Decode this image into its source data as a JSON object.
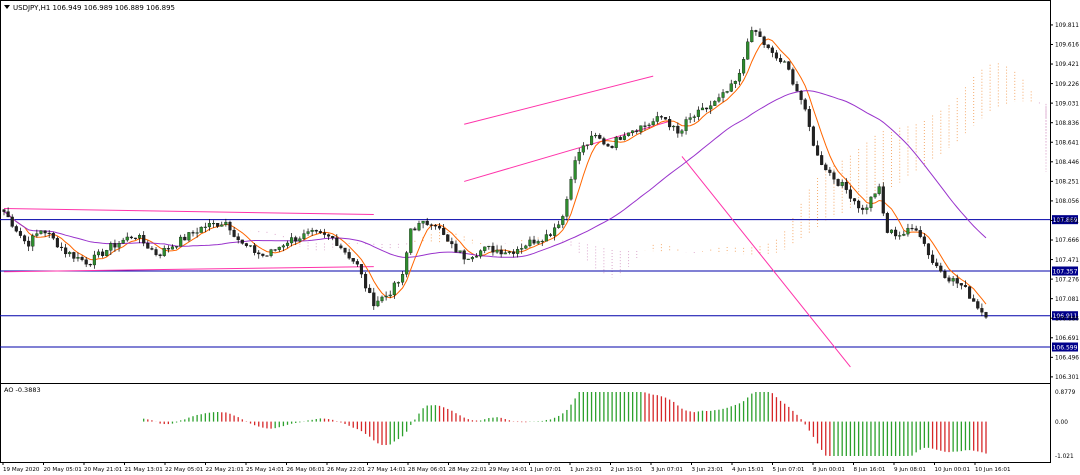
{
  "header": {
    "symbol_line": "USDJPY,H1  106.949 106.989 106.889 106.895"
  },
  "indicator": {
    "label": "AO -0.3883",
    "ticks": [
      "0.8779",
      "0.00",
      "-1.021"
    ]
  },
  "colors": {
    "frame": "#000000",
    "bull": "#2e8b2e",
    "bear": "#222222",
    "hline": "#0000aa",
    "tag_bg": "#00008b",
    "channel": "#ff33aa",
    "ma_fast": "#ff6600",
    "ma_slow": "#9933cc",
    "cloud_a": "#f4a460",
    "cloud_b": "#d8a0c8",
    "ao_up": "#2ca02c",
    "ao_down": "#d62728"
  },
  "chart_data": {
    "type": "candlestick",
    "symbol": "USDJPY",
    "timeframe": "H1",
    "last_bar": {
      "open": 106.949,
      "high": 106.989,
      "low": 106.889,
      "close": 106.895
    },
    "price_range": [
      106.25,
      109.9
    ],
    "y_ticks": [
      "109.811",
      "109.616",
      "109.421",
      "109.226",
      "109.031",
      "108.836",
      "108.641",
      "108.446",
      "108.251",
      "108.056",
      "107.861",
      "107.666",
      "107.471",
      "107.276",
      "107.081",
      "106.886",
      "106.691",
      "106.496",
      "106.301"
    ],
    "levels": [
      {
        "label": "107.869",
        "value": 107.869
      },
      {
        "label": "107.357",
        "value": 107.357
      },
      {
        "label": "106.911",
        "value": 106.911
      },
      {
        "label": "106.599",
        "value": 106.599
      }
    ],
    "x_ticks": [
      "19 May 2020",
      "20 May 05:01",
      "20 May 21:01",
      "21 May 13:01",
      "22 May 05:01",
      "22 May 21:01",
      "25 May 14:01",
      "26 May 06:01",
      "26 May 22:01",
      "27 May 14:01",
      "28 May 06:01",
      "28 May 22:01",
      "29 May 14:01",
      "1 Jun 07:01",
      "1 Jun 23:01",
      "2 Jun 15:01",
      "3 Jun 07:01",
      "3 Jun 23:01",
      "4 Jun 15:01",
      "5 Jun 07:01",
      "8 Jun 00:01",
      "8 Jun 16:01",
      "9 Jun 08:01",
      "10 Jun 00:01",
      "10 Jun 16:01"
    ],
    "price_path": [
      [
        0,
        107.95
      ],
      [
        3,
        107.62
      ],
      [
        5,
        107.78
      ],
      [
        8,
        107.55
      ],
      [
        11,
        107.44
      ],
      [
        14,
        107.6
      ],
      [
        17,
        107.72
      ],
      [
        20,
        107.52
      ],
      [
        23,
        107.66
      ],
      [
        26,
        107.8
      ],
      [
        29,
        107.85
      ],
      [
        31,
        107.62
      ],
      [
        34,
        107.5
      ],
      [
        37,
        107.66
      ],
      [
        40,
        107.73
      ],
      [
        43,
        107.68
      ],
      [
        46,
        107.42
      ],
      [
        48,
        107.04
      ],
      [
        50,
        107.12
      ],
      [
        52,
        107.3
      ],
      [
        53,
        107.78
      ],
      [
        56,
        107.86
      ],
      [
        58,
        107.62
      ],
      [
        60,
        107.5
      ],
      [
        63,
        107.58
      ],
      [
        66,
        107.55
      ],
      [
        69,
        107.66
      ],
      [
        71,
        107.72
      ],
      [
        73,
        107.92
      ],
      [
        74,
        108.35
      ],
      [
        75,
        108.55
      ],
      [
        77,
        108.7
      ],
      [
        79,
        108.6
      ],
      [
        81,
        108.75
      ],
      [
        84,
        108.82
      ],
      [
        86,
        108.9
      ],
      [
        88,
        108.7
      ],
      [
        89,
        108.85
      ],
      [
        91,
        108.95
      ],
      [
        93,
        109.05
      ],
      [
        95,
        109.2
      ],
      [
        96,
        109.32
      ],
      [
        97,
        109.7
      ],
      [
        98,
        109.74
      ],
      [
        100,
        109.52
      ],
      [
        102,
        109.4
      ],
      [
        104,
        109.05
      ],
      [
        106,
        108.5
      ],
      [
        108,
        108.3
      ],
      [
        110,
        108.15
      ],
      [
        112,
        107.95
      ],
      [
        114,
        108.2
      ],
      [
        115,
        107.75
      ],
      [
        117,
        107.72
      ],
      [
        119,
        107.8
      ],
      [
        121,
        107.45
      ],
      [
        123,
        107.3
      ],
      [
        125,
        107.2
      ],
      [
        127,
        107.0
      ],
      [
        128,
        106.9
      ]
    ],
    "ao_series": [
      {
        "name": "AO",
        "shape": "histogram"
      }
    ]
  }
}
